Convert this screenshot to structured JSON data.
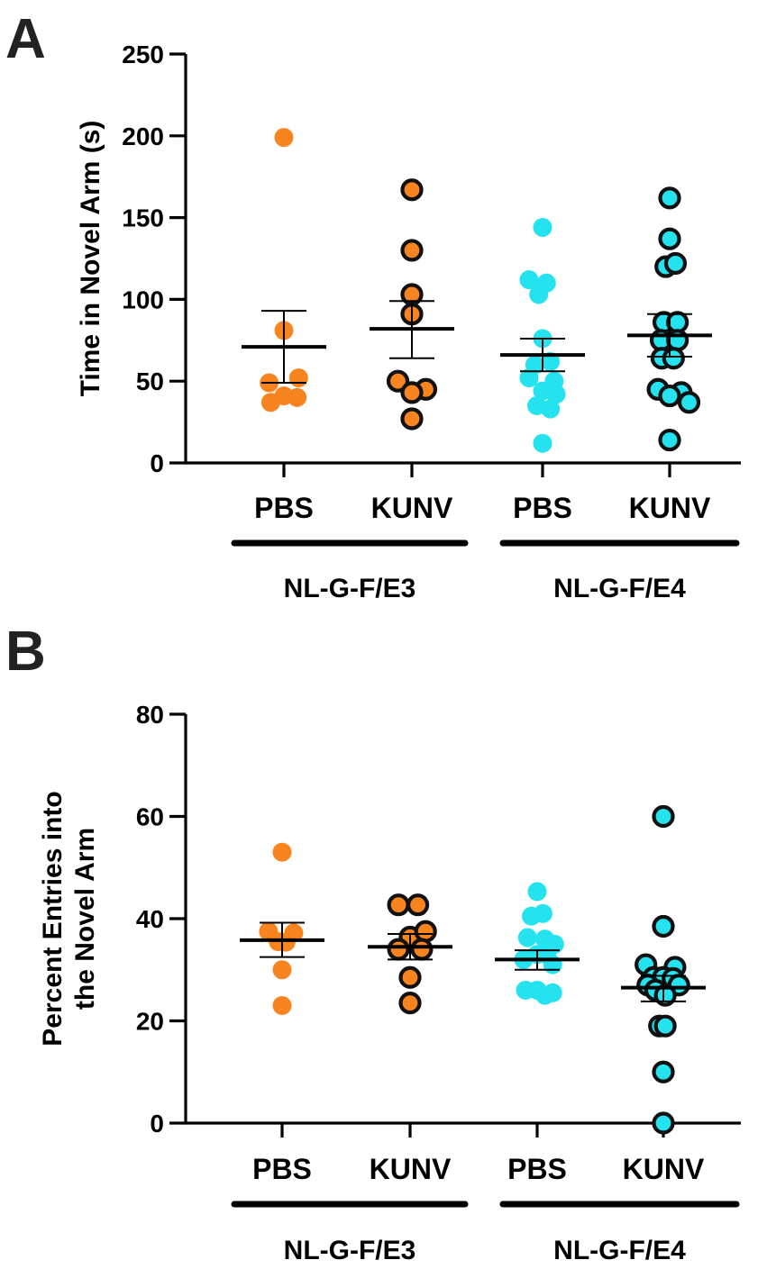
{
  "chart_data": [
    {
      "type": "scatter",
      "panel": "A",
      "ylabel": "Time in Novel Arm (s)",
      "ylim": [
        0,
        250
      ],
      "yticks": [
        "0",
        "50",
        "100",
        "150",
        "200",
        "250"
      ],
      "categories": [
        "PBS",
        "KUNV",
        "PBS",
        "KUNV"
      ],
      "groups": [
        {
          "label": "NL-G-F/E3",
          "categories": [
            0,
            1
          ]
        },
        {
          "label": "NL-G-F/E4",
          "categories": [
            2,
            3
          ]
        }
      ],
      "series": [
        {
          "name": "E3 PBS",
          "color": "#f7841e",
          "outlined": false,
          "mean": 71,
          "sem_low": 49,
          "sem_high": 93,
          "points": [
            [
              0,
              199
            ],
            [
              0,
              81
            ],
            [
              0.38,
              52
            ],
            [
              -0.38,
              49
            ],
            [
              0,
              41
            ],
            [
              0.34,
              40
            ],
            [
              -0.34,
              37
            ]
          ]
        },
        {
          "name": "E3 KUNV",
          "color": "#f7841e",
          "outlined": true,
          "mean": 82,
          "sem_low": 64,
          "sem_high": 99,
          "points": [
            [
              0,
              167
            ],
            [
              0,
              130
            ],
            [
              0,
              103
            ],
            [
              0,
              91
            ],
            [
              -0.36,
              50
            ],
            [
              0.36,
              45
            ],
            [
              0,
              43
            ],
            [
              0,
              27
            ]
          ]
        },
        {
          "name": "E4 PBS",
          "color": "#24e3ef",
          "outlined": false,
          "mean": 66,
          "sem_low": 56,
          "sem_high": 76,
          "points": [
            [
              0,
              144
            ],
            [
              -0.35,
              112
            ],
            [
              0.1,
              110
            ],
            [
              -0.1,
              103
            ],
            [
              0,
              76
            ],
            [
              0.2,
              62
            ],
            [
              -0.2,
              60
            ],
            [
              -0.35,
              52
            ],
            [
              0.3,
              50
            ],
            [
              0,
              44
            ],
            [
              0.35,
              42
            ],
            [
              -0.15,
              35
            ],
            [
              0.2,
              33
            ],
            [
              0,
              12
            ]
          ]
        },
        {
          "name": "E4 KUNV",
          "color": "#24e3ef",
          "outlined": true,
          "mean": 78,
          "sem_low": 65,
          "sem_high": 91,
          "points": [
            [
              0,
              162
            ],
            [
              0,
              137
            ],
            [
              -0.1,
              120
            ],
            [
              0.15,
              122
            ],
            [
              -0.15,
              86
            ],
            [
              0.2,
              86
            ],
            [
              -0.22,
              75
            ],
            [
              0.2,
              75
            ],
            [
              -0.2,
              64
            ],
            [
              0.1,
              64
            ],
            [
              -0.3,
              45
            ],
            [
              0.3,
              43
            ],
            [
              0,
              41
            ],
            [
              0.5,
              37
            ],
            [
              0,
              14
            ]
          ]
        }
      ]
    },
    {
      "type": "scatter",
      "panel": "B",
      "ylabel_lines": [
        "Percent Entries into",
        "the Novel  Arm"
      ],
      "ylim": [
        0,
        80
      ],
      "yticks": [
        "0",
        "20",
        "40",
        "60",
        "80"
      ],
      "categories": [
        "PBS",
        "KUNV",
        "PBS",
        "KUNV"
      ],
      "groups": [
        {
          "label": "NL-G-F/E3",
          "categories": [
            0,
            1
          ]
        },
        {
          "label": "NL-G-F/E4",
          "categories": [
            2,
            3
          ]
        }
      ],
      "series": [
        {
          "name": "E3 PBS",
          "color": "#f7841e",
          "outlined": false,
          "mean": 35.8,
          "sem_low": 32.5,
          "sem_high": 39.2,
          "points": [
            [
              0,
              53
            ],
            [
              -0.35,
              37.5
            ],
            [
              0.3,
              37.2
            ],
            [
              -0.1,
              35.5
            ],
            [
              0.1,
              35.4
            ],
            [
              0,
              30
            ],
            [
              0,
              23
            ]
          ]
        },
        {
          "name": "E3 KUNV",
          "color": "#f7841e",
          "outlined": true,
          "mean": 34.5,
          "sem_low": 32,
          "sem_high": 37,
          "points": [
            [
              -0.3,
              42.7
            ],
            [
              0.2,
              42.7
            ],
            [
              0,
              36.4
            ],
            [
              0.4,
              37.5
            ],
            [
              -0.3,
              34
            ],
            [
              0.3,
              34
            ],
            [
              0,
              28.5
            ],
            [
              0,
              23.5
            ]
          ]
        },
        {
          "name": "E4 PBS",
          "color": "#24e3ef",
          "outlined": false,
          "mean": 32,
          "sem_low": 30,
          "sem_high": 33.8,
          "points": [
            [
              0,
              45.3
            ],
            [
              0.15,
              41
            ],
            [
              -0.15,
              40.5
            ],
            [
              -0.25,
              36.3
            ],
            [
              0.2,
              36
            ],
            [
              0.45,
              35
            ],
            [
              0,
              33
            ],
            [
              0.25,
              33
            ],
            [
              -0.35,
              32
            ],
            [
              0.4,
              31
            ],
            [
              -0.3,
              26
            ],
            [
              0,
              26
            ],
            [
              0.2,
              25
            ],
            [
              0.4,
              25.5
            ]
          ]
        },
        {
          "name": "E4 KUNV",
          "color": "#24e3ef",
          "outlined": true,
          "mean": 26.5,
          "sem_low": 23.8,
          "sem_high": 28.8,
          "points": [
            [
              0,
              60
            ],
            [
              0,
              38.5
            ],
            [
              -0.45,
              31
            ],
            [
              0.3,
              30.5
            ],
            [
              -0.25,
              28.5
            ],
            [
              0,
              28.5
            ],
            [
              0.25,
              28.3
            ],
            [
              -0.4,
              27
            ],
            [
              0.4,
              27
            ],
            [
              -0.2,
              26
            ],
            [
              0.05,
              25
            ],
            [
              -0.1,
              19
            ],
            [
              0.05,
              19
            ],
            [
              0,
              10
            ],
            [
              0,
              0
            ]
          ]
        }
      ]
    }
  ]
}
